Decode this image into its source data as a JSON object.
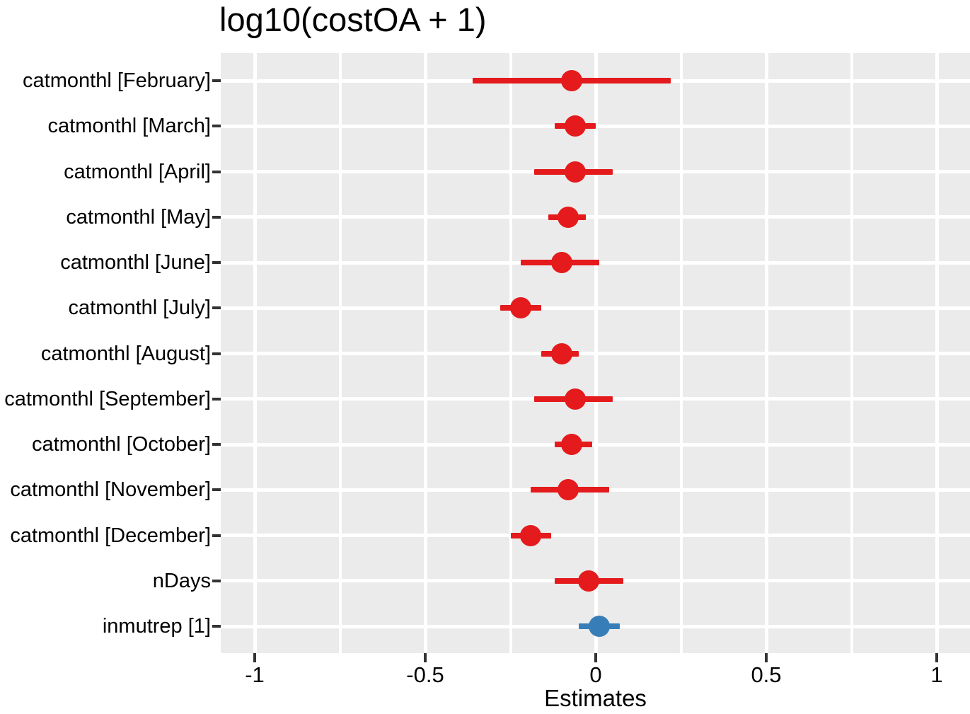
{
  "title": "log10(costOA + 1)",
  "xlabel": "Estimates",
  "colors": {
    "negative": "#e41a1c",
    "positive": "#377eb8",
    "panel_bg": "#ebebeb",
    "gridline": "#ffffff",
    "tick_mark": "#333333",
    "text": "#000000"
  },
  "chart_data": {
    "type": "scatter",
    "subtype": "forest-plot",
    "title": "log10(costOA + 1)",
    "xlabel": "Estimates",
    "ylabel": "",
    "xlim": [
      -1.1,
      1.1
    ],
    "grid": true,
    "legend_position": "none",
    "x_major_ticks": [
      -1,
      -0.5,
      0,
      0.5,
      1
    ],
    "x_tick_labels": [
      "-1",
      "-0.5",
      "0",
      "0.5",
      "1"
    ],
    "x_minor_gridlines": [
      -0.75,
      -0.25,
      0.25,
      0.75
    ],
    "terms": [
      {
        "label": "catmonthl [February]",
        "estimate": -0.07,
        "ci_low": -0.36,
        "ci_high": 0.22,
        "color": "#e41a1c"
      },
      {
        "label": "catmonthl [March]",
        "estimate": -0.06,
        "ci_low": -0.12,
        "ci_high": 0.0,
        "color": "#e41a1c"
      },
      {
        "label": "catmonthl [April]",
        "estimate": -0.06,
        "ci_low": -0.18,
        "ci_high": 0.05,
        "color": "#e41a1c"
      },
      {
        "label": "catmonthl [May]",
        "estimate": -0.08,
        "ci_low": -0.14,
        "ci_high": -0.03,
        "color": "#e41a1c"
      },
      {
        "label": "catmonthl [June]",
        "estimate": -0.1,
        "ci_low": -0.22,
        "ci_high": 0.01,
        "color": "#e41a1c"
      },
      {
        "label": "catmonthl [July]",
        "estimate": -0.22,
        "ci_low": -0.28,
        "ci_high": -0.16,
        "color": "#e41a1c"
      },
      {
        "label": "catmonthl [August]",
        "estimate": -0.1,
        "ci_low": -0.16,
        "ci_high": -0.05,
        "color": "#e41a1c"
      },
      {
        "label": "catmonthl [September]",
        "estimate": -0.06,
        "ci_low": -0.18,
        "ci_high": 0.05,
        "color": "#e41a1c"
      },
      {
        "label": "catmonthl [October]",
        "estimate": -0.07,
        "ci_low": -0.12,
        "ci_high": -0.01,
        "color": "#e41a1c"
      },
      {
        "label": "catmonthl [November]",
        "estimate": -0.08,
        "ci_low": -0.19,
        "ci_high": 0.04,
        "color": "#e41a1c"
      },
      {
        "label": "catmonthl [December]",
        "estimate": -0.19,
        "ci_low": -0.25,
        "ci_high": -0.13,
        "color": "#e41a1c"
      },
      {
        "label": "nDays",
        "estimate": -0.02,
        "ci_low": -0.12,
        "ci_high": 0.08,
        "color": "#e41a1c"
      },
      {
        "label": "inmutrep [1]",
        "estimate": 0.01,
        "ci_low": -0.05,
        "ci_high": 0.07,
        "color": "#377eb8"
      }
    ]
  }
}
